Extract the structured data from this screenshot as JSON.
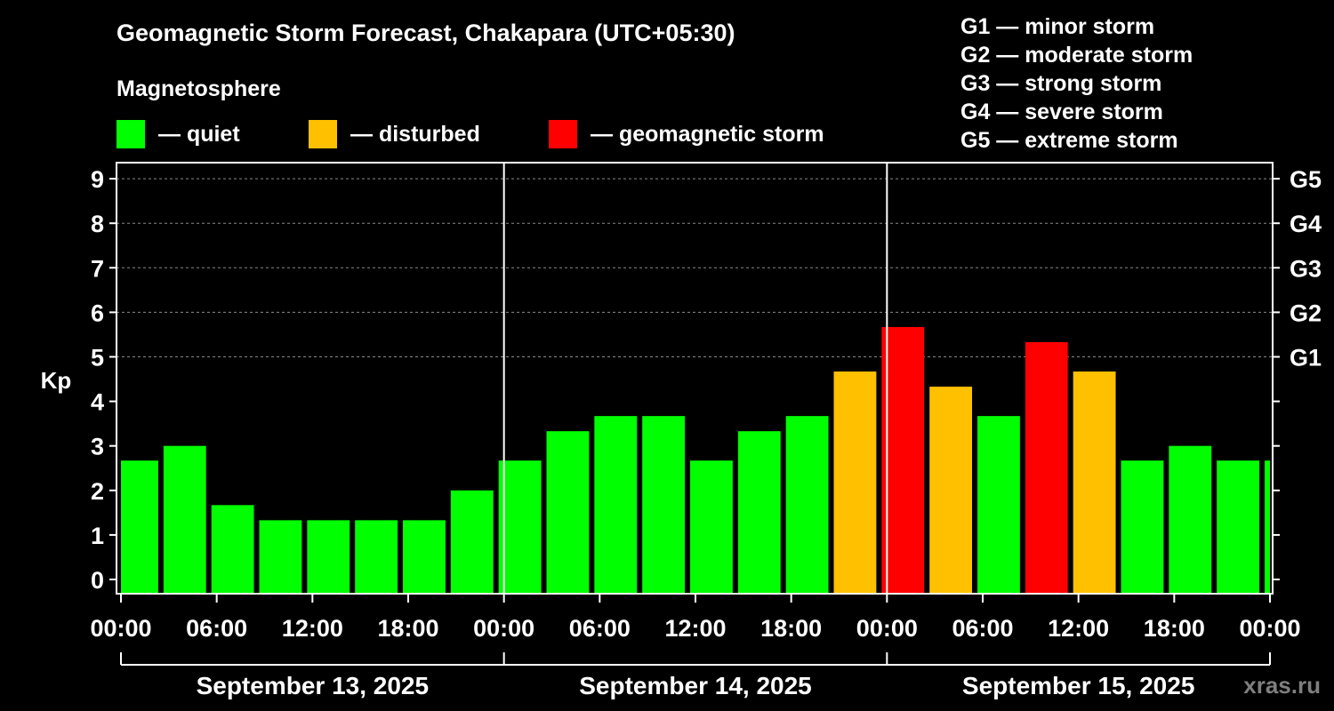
{
  "title": "Geomagnetic Storm Forecast, Chakapara (UTC+05:30)",
  "legend": {
    "heading": "Magnetosphere",
    "items": [
      {
        "label": "— quiet",
        "color": "#00FF00"
      },
      {
        "label": "— disturbed",
        "color": "#FFC000"
      },
      {
        "label": "— geomagnetic storm",
        "color": "#FF0000"
      }
    ]
  },
  "storm_levels": [
    {
      "code": "G1",
      "desc": "minor storm",
      "text": "G1 — minor storm",
      "kp": 5
    },
    {
      "code": "G2",
      "desc": "moderate storm",
      "text": "G2 — moderate storm",
      "kp": 6
    },
    {
      "code": "G3",
      "desc": "strong storm",
      "text": "G3 — strong storm",
      "kp": 7
    },
    {
      "code": "G4",
      "desc": "severe storm",
      "text": "G4 — severe storm",
      "kp": 8
    },
    {
      "code": "G5",
      "desc": "extreme storm",
      "text": "G5 — extreme storm",
      "kp": 9
    }
  ],
  "watermark": "xras.ru",
  "chart_data": {
    "type": "bar",
    "ylabel": "Kp",
    "ylim": [
      0,
      9
    ],
    "y_ticks": [
      "0",
      "1",
      "2",
      "3",
      "4",
      "5",
      "6",
      "7",
      "8",
      "9"
    ],
    "y2_ticks": [
      "G1",
      "G2",
      "G3",
      "G4",
      "G5"
    ],
    "x_tick_labels": [
      "00:00",
      "06:00",
      "12:00",
      "18:00",
      "00:00",
      "06:00",
      "12:00",
      "18:00",
      "00:00",
      "06:00",
      "12:00",
      "18:00",
      "00:00"
    ],
    "dates": [
      "September 13, 2025",
      "September 14, 2025",
      "September 15, 2025"
    ],
    "grid": true,
    "colors": {
      "quiet": "#00FF00",
      "disturbed": "#FFC000",
      "storm": "#FF0000"
    },
    "bars": [
      {
        "start": "2025-09-13 00:00",
        "end": "2025-09-13 02:30",
        "value": 2.67,
        "status": "quiet"
      },
      {
        "start": "2025-09-13 02:30",
        "end": "2025-09-13 05:30",
        "value": 3.0,
        "status": "quiet"
      },
      {
        "start": "2025-09-13 05:30",
        "end": "2025-09-13 08:30",
        "value": 1.67,
        "status": "quiet"
      },
      {
        "start": "2025-09-13 08:30",
        "end": "2025-09-13 11:30",
        "value": 1.33,
        "status": "quiet"
      },
      {
        "start": "2025-09-13 11:30",
        "end": "2025-09-13 14:30",
        "value": 1.33,
        "status": "quiet"
      },
      {
        "start": "2025-09-13 14:30",
        "end": "2025-09-13 17:30",
        "value": 1.33,
        "status": "quiet"
      },
      {
        "start": "2025-09-13 17:30",
        "end": "2025-09-13 20:30",
        "value": 1.33,
        "status": "quiet"
      },
      {
        "start": "2025-09-13 20:30",
        "end": "2025-09-13 23:30",
        "value": 2.0,
        "status": "quiet"
      },
      {
        "start": "2025-09-13 23:30",
        "end": "2025-09-14 02:30",
        "value": 2.67,
        "status": "quiet"
      },
      {
        "start": "2025-09-14 02:30",
        "end": "2025-09-14 05:30",
        "value": 3.33,
        "status": "quiet"
      },
      {
        "start": "2025-09-14 05:30",
        "end": "2025-09-14 08:30",
        "value": 3.67,
        "status": "quiet"
      },
      {
        "start": "2025-09-14 08:30",
        "end": "2025-09-14 11:30",
        "value": 3.67,
        "status": "quiet"
      },
      {
        "start": "2025-09-14 11:30",
        "end": "2025-09-14 14:30",
        "value": 2.67,
        "status": "quiet"
      },
      {
        "start": "2025-09-14 14:30",
        "end": "2025-09-14 17:30",
        "value": 3.33,
        "status": "quiet"
      },
      {
        "start": "2025-09-14 17:30",
        "end": "2025-09-14 20:30",
        "value": 3.67,
        "status": "quiet"
      },
      {
        "start": "2025-09-14 20:30",
        "end": "2025-09-14 23:30",
        "value": 4.67,
        "status": "disturbed"
      },
      {
        "start": "2025-09-14 23:30",
        "end": "2025-09-15 02:30",
        "value": 5.67,
        "status": "storm"
      },
      {
        "start": "2025-09-15 02:30",
        "end": "2025-09-15 05:30",
        "value": 4.33,
        "status": "disturbed"
      },
      {
        "start": "2025-09-15 05:30",
        "end": "2025-09-15 08:30",
        "value": 3.67,
        "status": "quiet"
      },
      {
        "start": "2025-09-15 08:30",
        "end": "2025-09-15 11:30",
        "value": 5.33,
        "status": "storm"
      },
      {
        "start": "2025-09-15 11:30",
        "end": "2025-09-15 14:30",
        "value": 4.67,
        "status": "disturbed"
      },
      {
        "start": "2025-09-15 14:30",
        "end": "2025-09-15 17:30",
        "value": 2.67,
        "status": "quiet"
      },
      {
        "start": "2025-09-15 17:30",
        "end": "2025-09-15 20:30",
        "value": 3.0,
        "status": "quiet"
      },
      {
        "start": "2025-09-15 20:30",
        "end": "2025-09-15 23:30",
        "value": 2.67,
        "status": "quiet"
      },
      {
        "start": "2025-09-15 23:30",
        "end": "2025-09-16 00:00",
        "value": 2.67,
        "status": "quiet"
      }
    ]
  }
}
